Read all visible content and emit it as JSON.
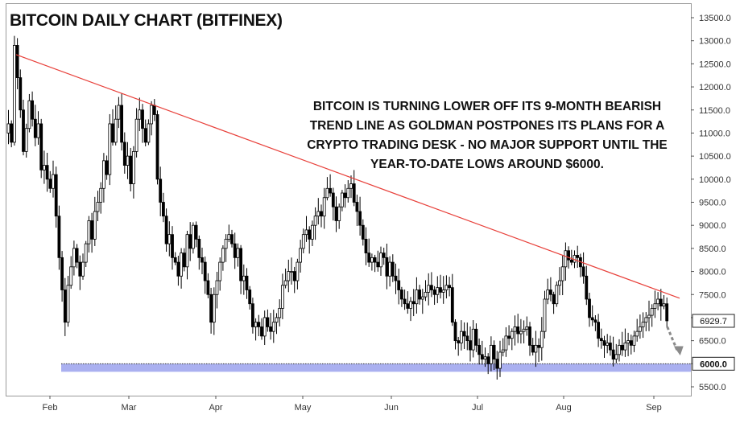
{
  "chart_data": {
    "type": "candlestick",
    "title": "BITCOIN DAILY CHART (BITFINEX)",
    "annotation": [
      "BITCOIN IS TURNING LOWER OFF ITS 9-MONTH BEARISH",
      "TREND LINE AS GOLDMAN POSTPONES ITS PLANS FOR A",
      "CRYPTO TRADING DESK - NO MAJOR SUPPORT UNTIL THE",
      "YEAR-TO-DATE LOWS AROUND $6000."
    ],
    "x_ticks": [
      "Feb",
      "Mar",
      "Apr",
      "May",
      "Jun",
      "Jul",
      "Aug",
      "Sep"
    ],
    "y_ticks": [
      "13500.0",
      "13000.0",
      "12500.0",
      "12000.0",
      "11500.0",
      "11000.0",
      "10500.0",
      "10000.0",
      "9500.0",
      "9000.0",
      "8500.0",
      "8000.0",
      "7500.0",
      "7000.0",
      "6500.0",
      "6000.0",
      "5500.0"
    ],
    "ylim": [
      5400,
      13700
    ],
    "last_price_label": "6929.7",
    "last_price": 6929.7,
    "support_label": "6000.0",
    "support_level": 6000,
    "trend_line": {
      "start": {
        "date": "Jan 17",
        "value": 12700
      },
      "end": {
        "date": "Sep 6",
        "value": 7420
      }
    },
    "colors": {
      "trend_line": "#e8403a",
      "support_band": "#aab0f0",
      "candle": "#000000",
      "up_fill": "#ffffff",
      "arrow": "#8a8a8a"
    },
    "series": {
      "closes": [
        11200,
        10800,
        12900,
        12200,
        11500,
        10600,
        11100,
        11700,
        11300,
        10900,
        11200,
        10200,
        10300,
        10000,
        9800,
        10100,
        9200,
        8300,
        7600,
        6900,
        7700,
        8100,
        8500,
        8200,
        7900,
        8200,
        8600,
        9100,
        8700,
        9300,
        9500,
        9800,
        10400,
        10100,
        11200,
        10800,
        11300,
        11600,
        10800,
        10300,
        10500,
        9900,
        10600,
        11300,
        11500,
        11100,
        10800,
        11200,
        11600,
        11400,
        10000,
        9500,
        9200,
        8600,
        8800,
        8300,
        8200,
        7900,
        8400,
        8100,
        8800,
        8500,
        9000,
        8700,
        8300,
        8200,
        7800,
        7500,
        6900,
        7500,
        7800,
        8200,
        8500,
        8700,
        8800,
        8600,
        8300,
        8500,
        7800,
        7900,
        7600,
        7300,
        6800,
        6900,
        6800,
        6600,
        7000,
        6800,
        6700,
        6900,
        7000,
        7200,
        7700,
        7800,
        8000,
        8000,
        7800,
        8200,
        8500,
        8800,
        8900,
        8700,
        9000,
        9200,
        9300,
        9200,
        9600,
        9800,
        9700,
        9400,
        9100,
        9400,
        9700,
        9600,
        9800,
        9900,
        9500,
        9300,
        9000,
        8700,
        8400,
        8200,
        8300,
        8200,
        8100,
        8400,
        8300,
        7900,
        8200,
        7900,
        7800,
        7600,
        7400,
        7300,
        7200,
        7350,
        7300,
        7600,
        7400,
        7450,
        7550,
        7700,
        7600,
        7500,
        7650,
        7550,
        7600,
        7700,
        7650,
        6900,
        6500,
        6450,
        6700,
        6600,
        6500,
        6300,
        6750,
        6400,
        6200,
        6100,
        6150,
        6000,
        6400,
        6100,
        5900,
        6250,
        6300,
        6600,
        6550,
        6700,
        6800,
        6650,
        6700,
        6750,
        6800,
        6400,
        6250,
        6400,
        6350,
        6700,
        7400,
        7600,
        7500,
        7300,
        7700,
        7800,
        8100,
        8450,
        8250,
        8200,
        8350,
        8300,
        8100,
        7900,
        7400,
        7000,
        6950,
        6900,
        6550,
        6500,
        6400,
        6450,
        6300,
        6100,
        6200,
        6400,
        6300,
        6450,
        6500,
        6400,
        6600,
        6700,
        6800,
        6900,
        7000,
        7050,
        7200,
        7300,
        7400,
        7250,
        7300,
        6930
      ]
    }
  }
}
